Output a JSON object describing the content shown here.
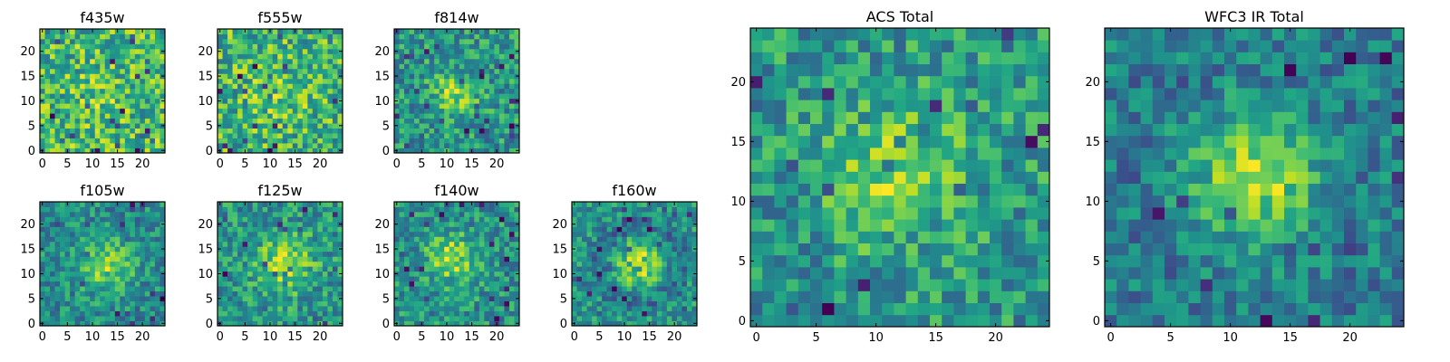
{
  "chart_data": [
    {
      "type": "heatmap",
      "title": "f435w",
      "xlim": [
        0,
        24
      ],
      "ylim": [
        0,
        24
      ],
      "xticks": [
        0,
        5,
        10,
        15,
        20
      ],
      "yticks": [
        0,
        5,
        10,
        15,
        20
      ],
      "grid_size": [
        25,
        25
      ],
      "colormap": "viridis",
      "pattern": "noise",
      "source": {
        "x": 12,
        "y": 11,
        "sigma": 4.0,
        "amp": 0.05
      },
      "seed": 11
    },
    {
      "type": "heatmap",
      "title": "f555w",
      "xlim": [
        0,
        24
      ],
      "ylim": [
        0,
        24
      ],
      "xticks": [
        0,
        5,
        10,
        15,
        20
      ],
      "yticks": [
        0,
        5,
        10,
        15,
        20
      ],
      "grid_size": [
        25,
        25
      ],
      "colormap": "viridis",
      "pattern": "noise with faint central source",
      "source": {
        "x": 12,
        "y": 12,
        "sigma": 3.5,
        "amp": 0.12
      },
      "seed": 22
    },
    {
      "type": "heatmap",
      "title": "f814w",
      "xlim": [
        0,
        24
      ],
      "ylim": [
        0,
        24
      ],
      "xticks": [
        0,
        5,
        10,
        15,
        20
      ],
      "yticks": [
        0,
        5,
        10,
        15,
        20
      ],
      "grid_size": [
        25,
        25
      ],
      "colormap": "viridis",
      "pattern": "central source",
      "source": {
        "x": 12,
        "y": 12,
        "sigma": 3.0,
        "amp": 0.32
      },
      "seed": 33
    },
    {
      "type": "heatmap",
      "title": "f105w",
      "xlim": [
        0,
        24
      ],
      "ylim": [
        0,
        24
      ],
      "xticks": [
        0,
        5,
        10,
        15,
        20
      ],
      "yticks": [
        0,
        5,
        10,
        15,
        20
      ],
      "grid_size": [
        25,
        25
      ],
      "colormap": "viridis",
      "pattern": "central source",
      "source": {
        "x": 13,
        "y": 12,
        "sigma": 3.5,
        "amp": 0.45
      },
      "seed": 44
    },
    {
      "type": "heatmap",
      "title": "f125w",
      "xlim": [
        0,
        24
      ],
      "ylim": [
        0,
        24
      ],
      "xticks": [
        0,
        5,
        10,
        15,
        20
      ],
      "yticks": [
        0,
        5,
        10,
        15,
        20
      ],
      "grid_size": [
        25,
        25
      ],
      "colormap": "viridis",
      "pattern": "central source",
      "source": {
        "x": 13,
        "y": 12,
        "sigma": 4.0,
        "amp": 0.38
      },
      "seed": 55
    },
    {
      "type": "heatmap",
      "title": "f140w",
      "xlim": [
        0,
        24
      ],
      "ylim": [
        0,
        24
      ],
      "xticks": [
        0,
        5,
        10,
        15,
        20
      ],
      "yticks": [
        0,
        5,
        10,
        15,
        20
      ],
      "grid_size": [
        25,
        25
      ],
      "colormap": "viridis",
      "pattern": "central source",
      "source": {
        "x": 11,
        "y": 13,
        "sigma": 3.5,
        "amp": 0.4
      },
      "seed": 66
    },
    {
      "type": "heatmap",
      "title": "f160w",
      "xlim": [
        0,
        24
      ],
      "ylim": [
        0,
        24
      ],
      "xticks": [
        0,
        5,
        10,
        15,
        20
      ],
      "yticks": [
        0,
        5,
        10,
        15,
        20
      ],
      "grid_size": [
        25,
        25
      ],
      "colormap": "viridis",
      "pattern": "central source with ring",
      "source": {
        "x": 13,
        "y": 12,
        "sigma": 2.8,
        "amp": 0.55
      },
      "seed": 77
    },
    {
      "type": "heatmap",
      "title": "ACS Total",
      "xlim": [
        0,
        24
      ],
      "ylim": [
        0,
        24
      ],
      "xticks": [
        0,
        5,
        10,
        15,
        20
      ],
      "yticks": [
        0,
        5,
        10,
        15,
        20
      ],
      "grid_size": [
        25,
        25
      ],
      "colormap": "viridis",
      "pattern": "central source",
      "source": {
        "x": 12,
        "y": 12,
        "sigma": 3.8,
        "amp": 0.3
      },
      "seed": 88
    },
    {
      "type": "heatmap",
      "title": "WFC3 IR Total",
      "xlim": [
        0,
        24
      ],
      "ylim": [
        0,
        24
      ],
      "xticks": [
        0,
        5,
        10,
        15,
        20
      ],
      "yticks": [
        0,
        5,
        10,
        15,
        20
      ],
      "grid_size": [
        25,
        25
      ],
      "colormap": "viridis",
      "pattern": "bright central source",
      "source": {
        "x": 12,
        "y": 12,
        "sigma": 3.5,
        "amp": 0.6
      },
      "seed": 99
    }
  ]
}
